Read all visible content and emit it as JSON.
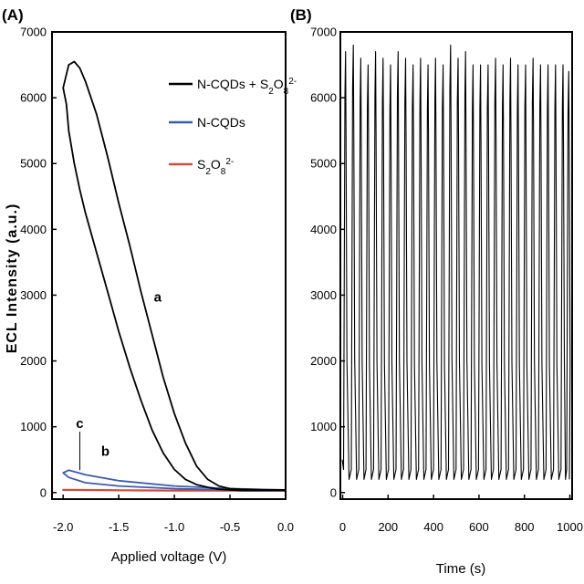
{
  "chart_data": [
    {
      "panel_label": "(A)",
      "type": "line",
      "xlabel": "Applied voltage (V)",
      "ylabel": "ECL Intensity (a.u.)",
      "xlim": [
        -2.1,
        0.0
      ],
      "ylim": [
        -100,
        7000
      ],
      "x_ticks": [
        -2.0,
        -1.5,
        -1.0,
        -0.5,
        0.0
      ],
      "x_tick_labels": [
        "-2.0",
        "-1.5",
        "-1.0",
        "-0.5",
        "0.0"
      ],
      "y_ticks": [
        0,
        1000,
        2000,
        3000,
        4000,
        5000,
        6000,
        7000
      ],
      "y_tick_labels": [
        "0",
        "1000",
        "2000",
        "3000",
        "4000",
        "5000",
        "6000",
        "7000"
      ],
      "grid": false,
      "legend_position": "top-right",
      "series": [
        {
          "name": "N-CQDs + S2O8 2-",
          "legend_main": "N-CQDs + S",
          "legend_sub1": "2",
          "legend_mid": "O",
          "legend_sub2": "8",
          "legend_sup": "2-",
          "label": "a",
          "color": "#000000",
          "x": [
            0.0,
            -0.2,
            -0.4,
            -0.5,
            -0.6,
            -0.7,
            -0.8,
            -0.9,
            -1.0,
            -1.1,
            -1.2,
            -1.3,
            -1.4,
            -1.5,
            -1.6,
            -1.7,
            -1.8,
            -1.85,
            -1.9,
            -1.95,
            -2.0,
            -1.97,
            -1.95,
            -1.9,
            -1.85,
            -1.8,
            -1.7,
            -1.6,
            -1.5,
            -1.4,
            -1.3,
            -1.2,
            -1.1,
            -1.0,
            -0.9,
            -0.8,
            -0.7,
            -0.6,
            -0.5,
            -0.4,
            -0.2,
            0.0
          ],
          "y": [
            40,
            40,
            50,
            60,
            100,
            200,
            400,
            750,
            1200,
            1750,
            2400,
            3050,
            3750,
            4400,
            5100,
            5750,
            6250,
            6450,
            6550,
            6500,
            6150,
            5900,
            5500,
            5000,
            4600,
            4250,
            3650,
            3050,
            2450,
            1900,
            1400,
            950,
            600,
            350,
            200,
            120,
            80,
            50,
            40,
            30,
            30,
            30
          ]
        },
        {
          "name": "N-CQDs",
          "legend_main": "N-CQDs",
          "label": "b",
          "color": "#3a5cb0",
          "x": [
            0.0,
            -0.5,
            -1.0,
            -1.5,
            -1.8,
            -1.95,
            -2.0,
            -1.95,
            -1.8,
            -1.5,
            -1.0,
            -0.5,
            0.0
          ],
          "y": [
            40,
            60,
            100,
            180,
            270,
            340,
            300,
            230,
            150,
            100,
            60,
            40,
            40
          ]
        },
        {
          "name": "S2O8 2-",
          "legend_main": "S",
          "legend_sub1": "2",
          "legend_mid": "O",
          "legend_sub2": "8",
          "legend_sup": "2-",
          "label": "c",
          "color": "#d44a3a",
          "x": [
            0.0,
            -0.5,
            -1.0,
            -1.5,
            -2.0,
            -1.5,
            -1.0,
            -0.5,
            0.0
          ],
          "y": [
            30,
            30,
            30,
            35,
            40,
            35,
            30,
            30,
            30
          ]
        }
      ],
      "annotations": [
        {
          "text": "a",
          "x": -1.15,
          "y": 2900
        },
        {
          "text": "b",
          "x": -1.62,
          "y": 560
        },
        {
          "text": "c",
          "x": -1.85,
          "y": 980
        }
      ]
    },
    {
      "panel_label": "(B)",
      "type": "line",
      "xlabel": "Time (s)",
      "ylabel": "",
      "xlim": [
        -10,
        1010
      ],
      "ylim": [
        -100,
        7000
      ],
      "x_ticks": [
        0,
        200,
        400,
        600,
        800,
        1000
      ],
      "x_tick_labels": [
        "0",
        "200",
        "400",
        "600",
        "800",
        "1000"
      ],
      "y_ticks": [
        0,
        1000,
        2000,
        3000,
        4000,
        5000,
        6000,
        7000
      ],
      "y_tick_labels": [
        "0",
        "1000",
        "2000",
        "3000",
        "4000",
        "5000",
        "6000",
        "7000"
      ],
      "grid": false,
      "series": [
        {
          "color": "#000000",
          "baseline": 200,
          "peak_times": [
            13,
            47,
            80,
            112,
            145,
            178,
            211,
            244,
            277,
            310,
            343,
            376,
            409,
            442,
            475,
            508,
            541,
            574,
            607,
            640,
            673,
            706,
            739,
            772,
            805,
            838,
            871,
            904,
            937,
            970,
            995
          ],
          "peak_values": [
            6700,
            6800,
            6600,
            6500,
            6700,
            6600,
            6500,
            6700,
            6600,
            6500,
            6600,
            6500,
            6600,
            6500,
            6800,
            6600,
            6700,
            6500,
            6500,
            6500,
            6600,
            6500,
            6600,
            6500,
            6500,
            6600,
            6500,
            6500,
            6500,
            6500,
            6400
          ]
        }
      ]
    }
  ]
}
